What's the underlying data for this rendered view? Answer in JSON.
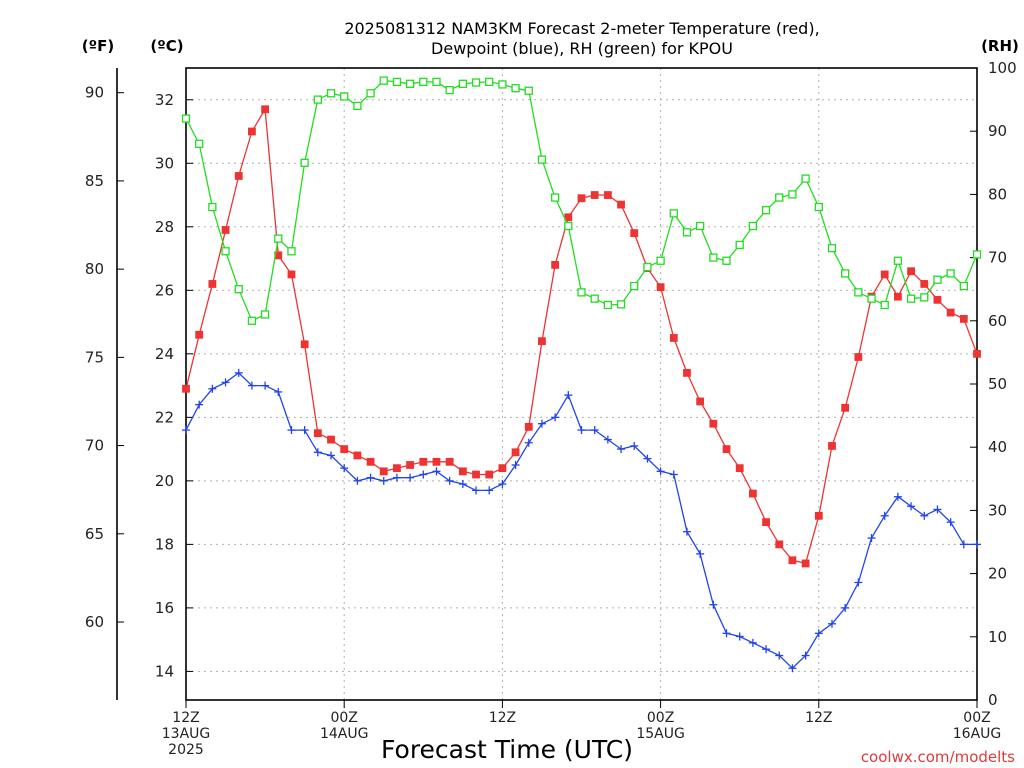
{
  "chart_data": {
    "type": "line",
    "title_line1": "2025081312 NAM3KM Forecast 2-meter Temperature (red),",
    "title_line2": "Dewpoint (blue), RH (green) for KPOU",
    "xlabel": "Forecast Time (UTC)",
    "credit": "coolwx.com/modelts",
    "unit_f": "(ºF)",
    "unit_c": "(ºC)",
    "unit_rh": "(RH)",
    "grid": true,
    "x_hours_from_start": [
      0,
      60
    ],
    "x_ticks": [
      {
        "hour": 0,
        "line1": "12Z",
        "line2": "13AUG",
        "line3": "2025"
      },
      {
        "hour": 12,
        "line1": "00Z",
        "line2": "14AUG",
        "line3": ""
      },
      {
        "hour": 24,
        "line1": "12Z",
        "line2": "",
        "line3": ""
      },
      {
        "hour": 36,
        "line1": "00Z",
        "line2": "15AUG",
        "line3": ""
      },
      {
        "hour": 48,
        "line1": "12Z",
        "line2": "",
        "line3": ""
      },
      {
        "hour": 60,
        "line1": "00Z",
        "line2": "16AUG",
        "line3": ""
      }
    ],
    "y_celsius": {
      "range": [
        13.1,
        33.0
      ],
      "ticks": [
        14,
        16,
        18,
        20,
        22,
        24,
        26,
        28,
        30,
        32
      ]
    },
    "y_fahrenheit": {
      "ticks": [
        60,
        65,
        70,
        75,
        80,
        85,
        90
      ]
    },
    "y_rh": {
      "range": [
        0,
        100
      ],
      "ticks": [
        0,
        10,
        20,
        30,
        40,
        50,
        60,
        70,
        80,
        90,
        100
      ]
    },
    "series": [
      {
        "name": "Temperature",
        "color": "#ee3333",
        "marker": "filled-square",
        "axis": "celsius",
        "x": [
          0,
          1,
          2,
          3,
          4,
          5,
          6,
          7,
          8,
          9,
          10,
          11,
          12,
          13,
          14,
          15,
          16,
          17,
          18,
          19,
          20,
          21,
          22,
          23,
          24,
          25,
          26,
          27,
          28,
          29,
          30,
          31,
          32,
          33,
          34,
          35,
          36,
          37,
          38,
          39,
          40,
          41,
          42,
          43,
          44,
          45,
          46,
          47,
          48,
          49,
          50,
          51,
          52,
          53,
          54,
          55,
          56,
          57,
          58,
          59,
          60
        ],
        "values": [
          22.9,
          24.6,
          26.2,
          27.9,
          29.6,
          31.0,
          31.7,
          27.1,
          26.5,
          24.3,
          21.5,
          21.3,
          21.0,
          20.8,
          20.6,
          20.3,
          20.4,
          20.5,
          20.6,
          20.6,
          20.6,
          20.3,
          20.2,
          20.2,
          20.4,
          20.9,
          21.7,
          24.4,
          26.8,
          28.3,
          28.9,
          29.0,
          29.0,
          28.7,
          27.8,
          26.7,
          26.1,
          24.5,
          23.4,
          22.5,
          21.8,
          21.0,
          20.4,
          19.6,
          18.7,
          18.0,
          17.5,
          17.4,
          18.9,
          21.1,
          22.3,
          23.9,
          25.8,
          26.5,
          25.8,
          26.6,
          26.2,
          25.7,
          25.3,
          25.1,
          24.0
        ]
      },
      {
        "name": "Dewpoint",
        "color": "#2244ee",
        "marker": "plus",
        "axis": "celsius",
        "x": [
          0,
          1,
          2,
          3,
          4,
          5,
          6,
          7,
          8,
          9,
          10,
          11,
          12,
          13,
          14,
          15,
          16,
          17,
          18,
          19,
          20,
          21,
          22,
          23,
          24,
          25,
          26,
          27,
          28,
          29,
          30,
          31,
          32,
          33,
          34,
          35,
          36,
          37,
          38,
          39,
          40,
          41,
          42,
          43,
          44,
          45,
          46,
          47,
          48,
          49,
          50,
          51,
          52,
          53,
          54,
          55,
          56,
          57,
          58,
          59,
          60
        ],
        "values": [
          21.6,
          22.4,
          22.9,
          23.1,
          23.4,
          23.0,
          23.0,
          22.8,
          21.6,
          21.6,
          20.9,
          20.8,
          20.4,
          20.0,
          20.1,
          20.0,
          20.1,
          20.1,
          20.2,
          20.3,
          20.0,
          19.9,
          19.7,
          19.7,
          19.9,
          20.5,
          21.2,
          21.8,
          22.0,
          22.7,
          21.6,
          21.6,
          21.3,
          21.0,
          21.1,
          20.7,
          20.3,
          20.2,
          18.4,
          17.7,
          16.1,
          15.2,
          15.1,
          14.9,
          14.7,
          14.5,
          14.1,
          14.5,
          15.2,
          15.5,
          16.0,
          16.8,
          18.2,
          18.9,
          19.5,
          19.2,
          18.9,
          19.1,
          18.7,
          18.0,
          18.0
        ]
      },
      {
        "name": "RH",
        "color": "#22dd22",
        "marker": "open-square",
        "axis": "rh",
        "x": [
          0,
          1,
          2,
          3,
          4,
          5,
          6,
          7,
          8,
          9,
          10,
          11,
          12,
          13,
          14,
          15,
          16,
          17,
          18,
          19,
          20,
          21,
          22,
          23,
          24,
          25,
          26,
          27,
          28,
          29,
          30,
          31,
          32,
          33,
          34,
          35,
          36,
          37,
          38,
          39,
          40,
          41,
          42,
          43,
          44,
          45,
          46,
          47,
          48,
          49,
          50,
          51,
          52,
          53,
          54,
          55,
          56,
          57,
          58,
          59,
          60
        ],
        "values": [
          92,
          88,
          78,
          71,
          65,
          60,
          61,
          73,
          71,
          85,
          95,
          96,
          95.5,
          94,
          96,
          98,
          97.8,
          97.5,
          97.8,
          97.8,
          96.5,
          97.5,
          97.7,
          97.8,
          97.4,
          96.8,
          96.4,
          85.5,
          79.5,
          75,
          64.5,
          63.5,
          62.5,
          62.6,
          65.5,
          68.5,
          69.5,
          77,
          74,
          75,
          70,
          69.5,
          72,
          75,
          77.5,
          79.5,
          80,
          82.5,
          78,
          71.5,
          67.5,
          64.5,
          63.5,
          62.5,
          69.5,
          63.5,
          63.7,
          66.5,
          67.5,
          65.5,
          70.5
        ]
      }
    ]
  }
}
